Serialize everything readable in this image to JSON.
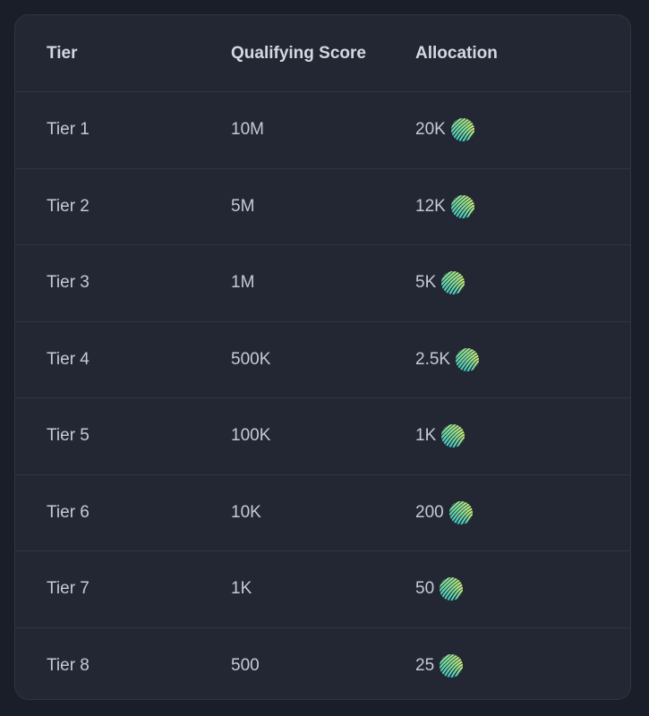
{
  "table": {
    "headers": [
      "Tier",
      "Qualifying Score",
      "Allocation"
    ],
    "rows": [
      {
        "tier": "Tier 1",
        "score": "10M",
        "allocation": "20K"
      },
      {
        "tier": "Tier 2",
        "score": "5M",
        "allocation": "12K"
      },
      {
        "tier": "Tier 3",
        "score": "1M",
        "allocation": "5K"
      },
      {
        "tier": "Tier 4",
        "score": "500K",
        "allocation": "2.5K"
      },
      {
        "tier": "Tier 5",
        "score": "100K",
        "allocation": "1K"
      },
      {
        "tier": "Tier 6",
        "score": "10K",
        "allocation": "200"
      },
      {
        "tier": "Tier 7",
        "score": "1K",
        "allocation": "50"
      },
      {
        "tier": "Tier 8",
        "score": "500",
        "allocation": "25"
      }
    ],
    "allocation_icon": "striped-token-coin-icon",
    "colors": {
      "background": "#1a1e28",
      "card": "#222733",
      "icon_gradient": [
        "#d6f06a",
        "#2ec9d6"
      ]
    }
  }
}
